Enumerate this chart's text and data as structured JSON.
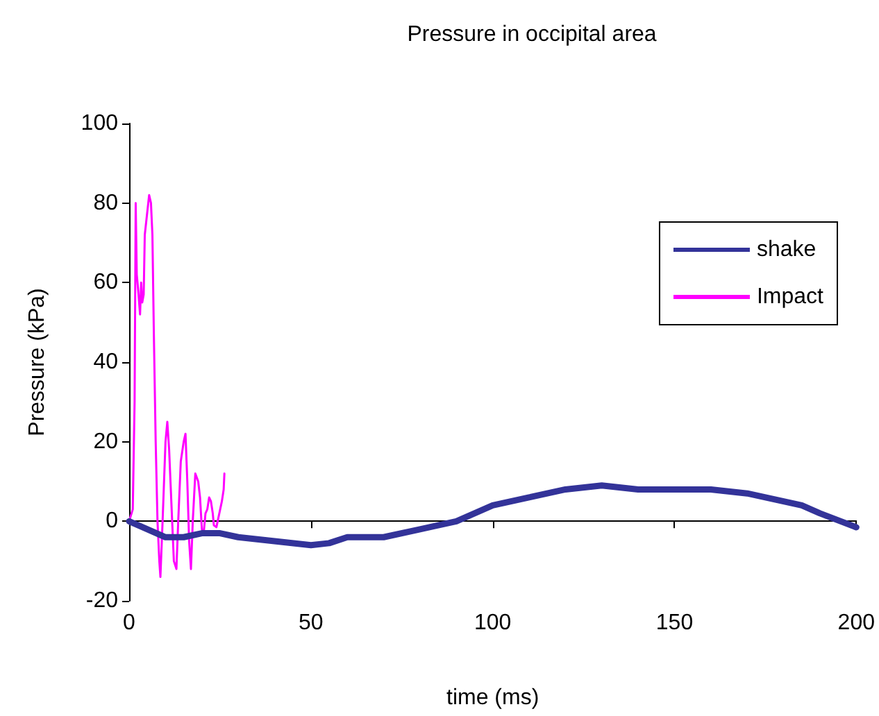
{
  "chart_data": {
    "type": "line",
    "title": "Pressure in occipital area",
    "xlabel": "time (ms)",
    "ylabel": "Pressure (kPa)",
    "xlim": [
      0,
      200
    ],
    "xticks": [
      0,
      50,
      100,
      150,
      200
    ],
    "ylim": [
      -20,
      100
    ],
    "yticks": [
      -20,
      0,
      20,
      40,
      60,
      80,
      100
    ],
    "legend": "top right",
    "marker": "none",
    "series": [
      {
        "name": "shake",
        "color": "#333399",
        "x": [
          0,
          10,
          15,
          20,
          25,
          30,
          40,
          50,
          55,
          60,
          70,
          80,
          90,
          100,
          105,
          110,
          120,
          130,
          140,
          160,
          170,
          180,
          185,
          190,
          200
        ],
        "values": [
          0,
          -4,
          -4,
          -3,
          -3,
          -4,
          -5,
          -6,
          -5.5,
          -4,
          -4,
          -2,
          0,
          4,
          5,
          6,
          8,
          9,
          8,
          8,
          7,
          5,
          4,
          2,
          -1.5
        ]
      },
      {
        "name": "Impact",
        "color": "#ff00ff",
        "x": [
          0,
          1,
          1.5,
          1.8,
          2.1,
          2.5,
          3,
          3.3,
          3.6,
          4,
          4.3,
          5.5,
          6,
          6.4,
          6.8,
          7.3,
          7.8,
          8.3,
          8.6,
          9.2,
          10,
          10.5,
          11,
          11.6,
          12.3,
          13,
          13.5,
          14.2,
          15,
          15.5,
          16,
          16.5,
          17,
          17.5,
          18.2,
          19,
          19.5,
          20,
          20.5,
          21,
          21.5,
          22,
          22.5,
          23,
          23.3,
          24,
          25.5,
          26,
          26.2
        ],
        "values": [
          0,
          3,
          30,
          80,
          62,
          58,
          52,
          60,
          55,
          57,
          72,
          82,
          80,
          72,
          47,
          20,
          0,
          -10,
          -14,
          0,
          20,
          25,
          18,
          5,
          -10,
          -12,
          0,
          15,
          20,
          22,
          10,
          -5,
          -12,
          0,
          12,
          10,
          6,
          -2,
          -3,
          2,
          3,
          6,
          5,
          2,
          -1,
          -1.5,
          5,
          8,
          12
        ]
      }
    ]
  }
}
